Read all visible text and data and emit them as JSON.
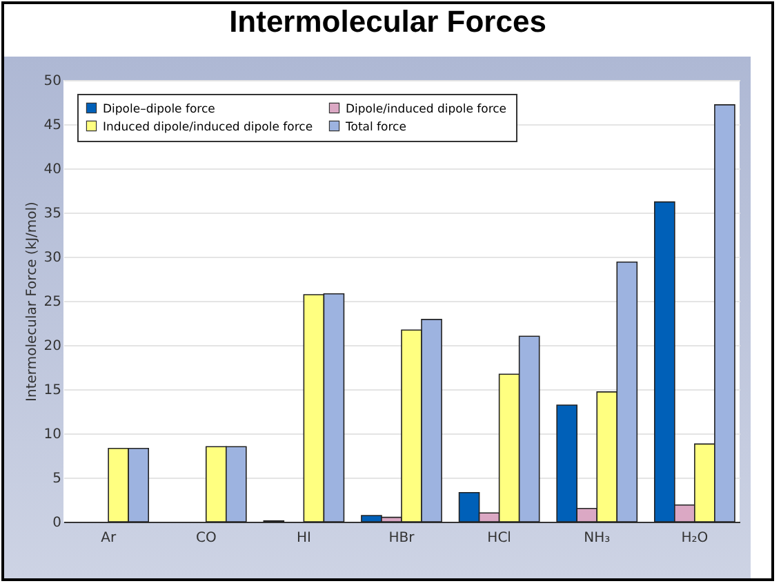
{
  "chart_data": {
    "type": "bar",
    "title": "Intermolecular Forces",
    "ylabel": "Intermolecular Force (kJ/mol)",
    "categories": [
      "Ar",
      "CO",
      "HI",
      "HBr",
      "HCl",
      "NH₃",
      "H₂O"
    ],
    "series": [
      {
        "name": "Dipole–dipole force",
        "color": "#0060b8",
        "values": [
          null,
          null,
          0.1,
          0.7,
          3.3,
          13.2,
          36.2
        ]
      },
      {
        "name": "Dipole/induced dipole force",
        "color": "#dba8c4",
        "values": [
          null,
          null,
          null,
          0.5,
          1.0,
          1.5,
          1.9
        ]
      },
      {
        "name": "Induced dipole/induced dipole force",
        "color": "#ffff80",
        "values": [
          8.3,
          8.5,
          25.7,
          21.7,
          16.7,
          14.7,
          8.8
        ]
      },
      {
        "name": "Total force",
        "color": "#9db3e0",
        "values": [
          8.3,
          8.5,
          25.8,
          22.9,
          21.0,
          29.4,
          47.2
        ]
      }
    ],
    "ylim": [
      0,
      50
    ],
    "yticks": [
      0,
      5,
      10,
      15,
      20,
      25,
      30,
      35,
      40,
      45,
      50
    ],
    "grid": "y",
    "legend": "top left"
  }
}
